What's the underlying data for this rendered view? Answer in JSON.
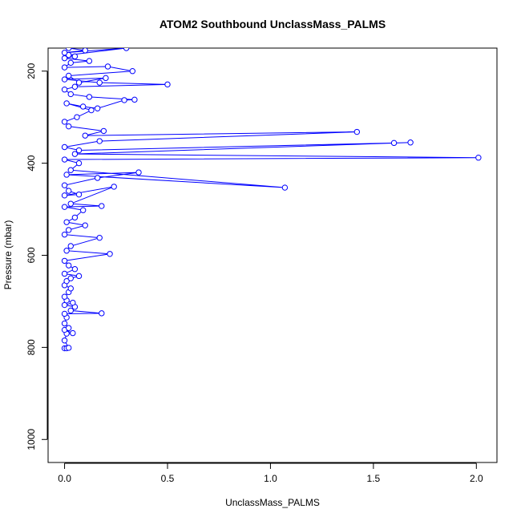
{
  "chart_data": {
    "type": "line",
    "title": "ATOM2 Southbound UnclassMass_PALMS",
    "xlabel": "UnclassMass_PALMS",
    "ylabel": "Pressure (mbar)",
    "xlim": [
      -0.08,
      2.1
    ],
    "ylim": [
      1050,
      150
    ],
    "y_reversed": true,
    "x_ticks": [
      0.0,
      0.5,
      1.0,
      1.5,
      2.0
    ],
    "x_tick_labels": [
      "0.0",
      "0.5",
      "1.0",
      "1.5",
      "2.0"
    ],
    "y_ticks": [
      200,
      400,
      600,
      800,
      1000
    ],
    "y_tick_labels": [
      "200",
      "400",
      "600",
      "800",
      "1000"
    ],
    "grid": false,
    "legend": "none",
    "series": [
      {
        "color": "#0000ff",
        "marker": "open-circle",
        "points": [
          [
            0.0,
            802
          ],
          [
            0.01,
            802
          ],
          [
            0.02,
            801
          ],
          [
            0.0,
            785
          ],
          [
            0.01,
            770
          ],
          [
            0.04,
            769
          ],
          [
            0.0,
            762
          ],
          [
            0.02,
            758
          ],
          [
            0.0,
            748
          ],
          [
            0.01,
            735
          ],
          [
            0.0,
            727
          ],
          [
            0.18,
            726
          ],
          [
            0.03,
            720
          ],
          [
            0.05,
            712
          ],
          [
            0.0,
            708
          ],
          [
            0.04,
            703
          ],
          [
            0.01,
            698
          ],
          [
            0.0,
            690
          ],
          [
            0.02,
            680
          ],
          [
            0.03,
            672
          ],
          [
            0.0,
            665
          ],
          [
            0.01,
            656
          ],
          [
            0.03,
            650
          ],
          [
            0.07,
            645
          ],
          [
            0.0,
            640
          ],
          [
            0.05,
            630
          ],
          [
            0.02,
            622
          ],
          [
            0.0,
            612
          ],
          [
            0.22,
            597
          ],
          [
            0.01,
            590
          ],
          [
            0.03,
            580
          ],
          [
            0.17,
            562
          ],
          [
            0.0,
            555
          ],
          [
            0.02,
            545
          ],
          [
            0.1,
            535
          ],
          [
            0.01,
            528
          ],
          [
            0.05,
            518
          ],
          [
            0.09,
            502
          ],
          [
            0.0,
            495
          ],
          [
            0.18,
            493
          ],
          [
            0.03,
            488
          ],
          [
            0.24,
            451
          ],
          [
            0.0,
            470
          ],
          [
            0.07,
            468
          ],
          [
            0.02,
            460
          ],
          [
            0.0,
            448
          ],
          [
            0.16,
            432
          ],
          [
            0.36,
            420
          ],
          [
            0.01,
            425
          ],
          [
            1.07,
            453
          ],
          [
            0.03,
            415
          ],
          [
            0.07,
            400
          ],
          [
            0.0,
            392
          ],
          [
            2.01,
            388
          ],
          [
            0.05,
            380
          ],
          [
            1.68,
            355
          ],
          [
            1.6,
            356
          ],
          [
            0.07,
            372
          ],
          [
            0.0,
            365
          ],
          [
            0.17,
            352
          ],
          [
            1.42,
            332
          ],
          [
            0.1,
            340
          ],
          [
            0.19,
            330
          ],
          [
            0.02,
            320
          ],
          [
            0.0,
            310
          ],
          [
            0.06,
            300
          ],
          [
            0.13,
            285
          ],
          [
            0.01,
            270
          ],
          [
            0.09,
            277
          ],
          [
            0.16,
            281
          ],
          [
            0.29,
            263
          ],
          [
            0.34,
            262
          ],
          [
            0.12,
            256
          ],
          [
            0.03,
            250
          ],
          [
            0.0,
            240
          ],
          [
            0.05,
            234
          ],
          [
            0.5,
            229
          ],
          [
            0.17,
            225
          ],
          [
            0.0,
            218
          ],
          [
            0.2,
            215
          ],
          [
            0.07,
            225
          ],
          [
            0.02,
            210
          ],
          [
            0.33,
            200
          ],
          [
            0.21,
            190
          ],
          [
            0.0,
            192
          ],
          [
            0.03,
            182
          ],
          [
            0.12,
            178
          ],
          [
            0.0,
            172
          ],
          [
            0.05,
            168
          ],
          [
            0.02,
            165
          ],
          [
            0.3,
            150
          ],
          [
            0.0,
            160
          ],
          [
            0.1,
            155
          ],
          [
            0.02,
            150
          ]
        ]
      }
    ]
  }
}
